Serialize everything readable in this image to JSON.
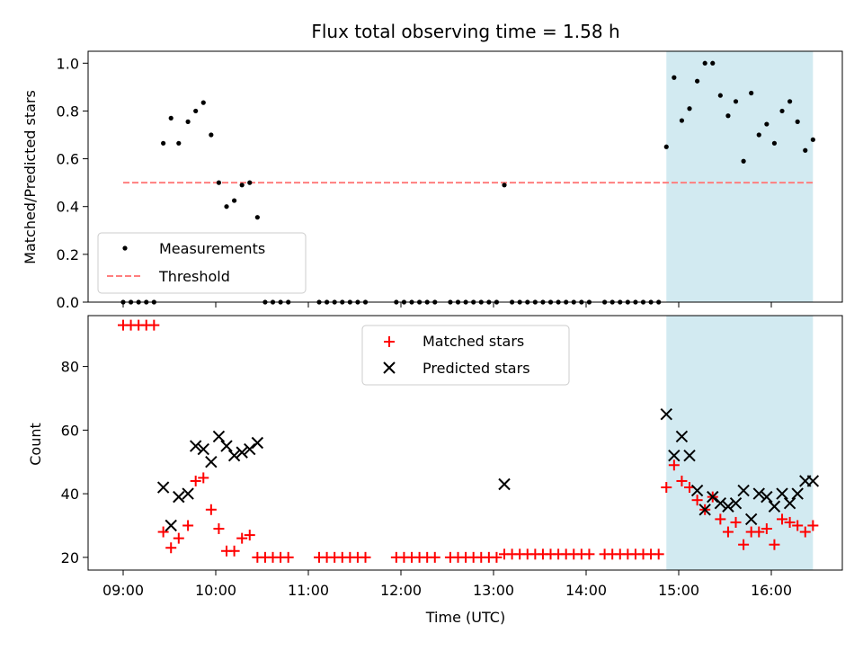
{
  "chart_data": {
    "title": "Flux total observing time = 1.58 h",
    "xlabel": "Time (UTC)",
    "x_ticks": [
      "09:00",
      "10:00",
      "11:00",
      "12:00",
      "13:00",
      "14:00",
      "15:00",
      "16:00"
    ],
    "highlight_span": {
      "start": "14:52",
      "end": "16:27",
      "color": "#add8e6"
    },
    "panels": [
      {
        "type": "scatter",
        "ylabel": "Matched/Predicted stars",
        "ylim": [
          0,
          1.05
        ],
        "y_ticks": [
          0.0,
          0.2,
          0.4,
          0.6,
          0.8,
          1.0
        ],
        "legend": {
          "placement": "lower-left",
          "entries": [
            "Measurements",
            "Threshold"
          ]
        },
        "series": [
          {
            "name": "Measurements",
            "color": "#000000",
            "marker": "dot",
            "points": [
              [
                "09:00",
                0
              ],
              [
                "09:05",
                0
              ],
              [
                "09:10",
                0
              ],
              [
                "09:15",
                0
              ],
              [
                "09:20",
                0
              ],
              [
                "09:26",
                0.665
              ],
              [
                "09:31",
                0.77
              ],
              [
                "09:36",
                0.665
              ],
              [
                "09:42",
                0.755
              ],
              [
                "09:47",
                0.8
              ],
              [
                "09:52",
                0.835
              ],
              [
                "09:57",
                0.7
              ],
              [
                "10:02",
                0.5
              ],
              [
                "10:07",
                0.4
              ],
              [
                "10:12",
                0.425
              ],
              [
                "10:17",
                0.49
              ],
              [
                "10:22",
                0.5
              ],
              [
                "10:27",
                0.355
              ],
              [
                "10:32",
                0
              ],
              [
                "10:37",
                0
              ],
              [
                "10:42",
                0
              ],
              [
                "10:47",
                0
              ],
              [
                "11:07",
                0
              ],
              [
                "11:12",
                0
              ],
              [
                "11:17",
                0
              ],
              [
                "11:22",
                0
              ],
              [
                "11:27",
                0
              ],
              [
                "11:32",
                0
              ],
              [
                "11:37",
                0
              ],
              [
                "11:57",
                0
              ],
              [
                "12:02",
                0
              ],
              [
                "12:07",
                0
              ],
              [
                "12:12",
                0
              ],
              [
                "12:17",
                0
              ],
              [
                "12:22",
                0
              ],
              [
                "12:32",
                0
              ],
              [
                "12:37",
                0
              ],
              [
                "12:42",
                0
              ],
              [
                "12:47",
                0
              ],
              [
                "12:52",
                0
              ],
              [
                "12:57",
                0
              ],
              [
                "13:02",
                0
              ],
              [
                "13:07",
                0.49
              ],
              [
                "13:12",
                0
              ],
              [
                "13:17",
                0
              ],
              [
                "13:22",
                0
              ],
              [
                "13:27",
                0
              ],
              [
                "13:32",
                0
              ],
              [
                "13:37",
                0
              ],
              [
                "13:42",
                0
              ],
              [
                "13:47",
                0
              ],
              [
                "13:52",
                0
              ],
              [
                "13:57",
                0
              ],
              [
                "14:02",
                0
              ],
              [
                "14:12",
                0
              ],
              [
                "14:17",
                0
              ],
              [
                "14:22",
                0
              ],
              [
                "14:27",
                0
              ],
              [
                "14:32",
                0
              ],
              [
                "14:37",
                0
              ],
              [
                "14:42",
                0
              ],
              [
                "14:47",
                0
              ],
              [
                "14:52",
                0.65
              ],
              [
                "14:57",
                0.94
              ],
              [
                "15:02",
                0.76
              ],
              [
                "15:07",
                0.81
              ],
              [
                "15:12",
                0.925
              ],
              [
                "15:17",
                1.0
              ],
              [
                "15:22",
                1.0
              ],
              [
                "15:27",
                0.865
              ],
              [
                "15:32",
                0.78
              ],
              [
                "15:37",
                0.84
              ],
              [
                "15:42",
                0.59
              ],
              [
                "15:47",
                0.875
              ],
              [
                "15:52",
                0.7
              ],
              [
                "15:57",
                0.745
              ],
              [
                "16:02",
                0.665
              ],
              [
                "16:07",
                0.8
              ],
              [
                "16:12",
                0.84
              ],
              [
                "16:17",
                0.755
              ],
              [
                "16:22",
                0.635
              ],
              [
                "16:27",
                0.68
              ]
            ]
          },
          {
            "name": "Threshold",
            "color": "#ff7f7f",
            "style": "dashed",
            "points": [
              [
                "09:00",
                0.5
              ],
              [
                "16:27",
                0.5
              ]
            ]
          }
        ]
      },
      {
        "type": "scatter",
        "ylabel": "Count",
        "ylim": [
          16,
          96
        ],
        "y_ticks": [
          20,
          40,
          60,
          80
        ],
        "legend": {
          "placement": "top-center",
          "entries": [
            "Matched stars",
            "Predicted stars"
          ]
        },
        "series": [
          {
            "name": "Matched stars",
            "color": "#ff0000",
            "marker": "plus",
            "points": [
              [
                "09:00",
                93
              ],
              [
                "09:05",
                93
              ],
              [
                "09:10",
                93
              ],
              [
                "09:15",
                93
              ],
              [
                "09:20",
                93
              ],
              [
                "09:26",
                28
              ],
              [
                "09:31",
                23
              ],
              [
                "09:36",
                26
              ],
              [
                "09:42",
                30
              ],
              [
                "09:47",
                44
              ],
              [
                "09:52",
                45
              ],
              [
                "09:57",
                35
              ],
              [
                "10:02",
                29
              ],
              [
                "10:07",
                22
              ],
              [
                "10:12",
                22
              ],
              [
                "10:17",
                26
              ],
              [
                "10:22",
                27
              ],
              [
                "10:27",
                20
              ],
              [
                "10:32",
                20
              ],
              [
                "10:37",
                20
              ],
              [
                "10:42",
                20
              ],
              [
                "10:47",
                20
              ],
              [
                "11:07",
                20
              ],
              [
                "11:12",
                20
              ],
              [
                "11:17",
                20
              ],
              [
                "11:22",
                20
              ],
              [
                "11:27",
                20
              ],
              [
                "11:32",
                20
              ],
              [
                "11:37",
                20
              ],
              [
                "11:57",
                20
              ],
              [
                "12:02",
                20
              ],
              [
                "12:07",
                20
              ],
              [
                "12:12",
                20
              ],
              [
                "12:17",
                20
              ],
              [
                "12:22",
                20
              ],
              [
                "12:32",
                20
              ],
              [
                "12:37",
                20
              ],
              [
                "12:42",
                20
              ],
              [
                "12:47",
                20
              ],
              [
                "12:52",
                20
              ],
              [
                "12:57",
                20
              ],
              [
                "13:02",
                20
              ],
              [
                "13:07",
                21
              ],
              [
                "13:12",
                21
              ],
              [
                "13:17",
                21
              ],
              [
                "13:22",
                21
              ],
              [
                "13:27",
                21
              ],
              [
                "13:32",
                21
              ],
              [
                "13:37",
                21
              ],
              [
                "13:42",
                21
              ],
              [
                "13:47",
                21
              ],
              [
                "13:52",
                21
              ],
              [
                "13:57",
                21
              ],
              [
                "14:02",
                21
              ],
              [
                "14:12",
                21
              ],
              [
                "14:17",
                21
              ],
              [
                "14:22",
                21
              ],
              [
                "14:27",
                21
              ],
              [
                "14:32",
                21
              ],
              [
                "14:37",
                21
              ],
              [
                "14:42",
                21
              ],
              [
                "14:47",
                21
              ],
              [
                "14:52",
                42
              ],
              [
                "14:57",
                49
              ],
              [
                "15:02",
                44
              ],
              [
                "15:07",
                42
              ],
              [
                "15:12",
                38
              ],
              [
                "15:17",
                35
              ],
              [
                "15:22",
                39
              ],
              [
                "15:27",
                32
              ],
              [
                "15:32",
                28
              ],
              [
                "15:37",
                31
              ],
              [
                "15:42",
                24
              ],
              [
                "15:47",
                28
              ],
              [
                "15:52",
                28
              ],
              [
                "15:57",
                29
              ],
              [
                "16:02",
                24
              ],
              [
                "16:07",
                32
              ],
              [
                "16:12",
                31
              ],
              [
                "16:17",
                30
              ],
              [
                "16:22",
                28
              ],
              [
                "16:27",
                30
              ]
            ]
          },
          {
            "name": "Predicted stars",
            "color": "#000000",
            "marker": "x",
            "points": [
              [
                "09:26",
                42
              ],
              [
                "09:31",
                30
              ],
              [
                "09:36",
                39
              ],
              [
                "09:42",
                40
              ],
              [
                "09:47",
                55
              ],
              [
                "09:52",
                54
              ],
              [
                "09:57",
                50
              ],
              [
                "10:02",
                58
              ],
              [
                "10:07",
                55
              ],
              [
                "10:12",
                52
              ],
              [
                "10:17",
                53
              ],
              [
                "10:22",
                54
              ],
              [
                "10:27",
                56
              ],
              [
                "13:07",
                43
              ],
              [
                "14:52",
                65
              ],
              [
                "14:57",
                52
              ],
              [
                "15:02",
                58
              ],
              [
                "15:07",
                52
              ],
              [
                "15:12",
                41
              ],
              [
                "15:17",
                35
              ],
              [
                "15:22",
                39
              ],
              [
                "15:27",
                37
              ],
              [
                "15:32",
                36
              ],
              [
                "15:37",
                37
              ],
              [
                "15:42",
                41
              ],
              [
                "15:47",
                32
              ],
              [
                "15:52",
                40
              ],
              [
                "15:57",
                39
              ],
              [
                "16:02",
                36
              ],
              [
                "16:07",
                40
              ],
              [
                "16:12",
                37
              ],
              [
                "16:17",
                40
              ],
              [
                "16:22",
                44
              ],
              [
                "16:27",
                44
              ]
            ]
          }
        ]
      }
    ]
  }
}
